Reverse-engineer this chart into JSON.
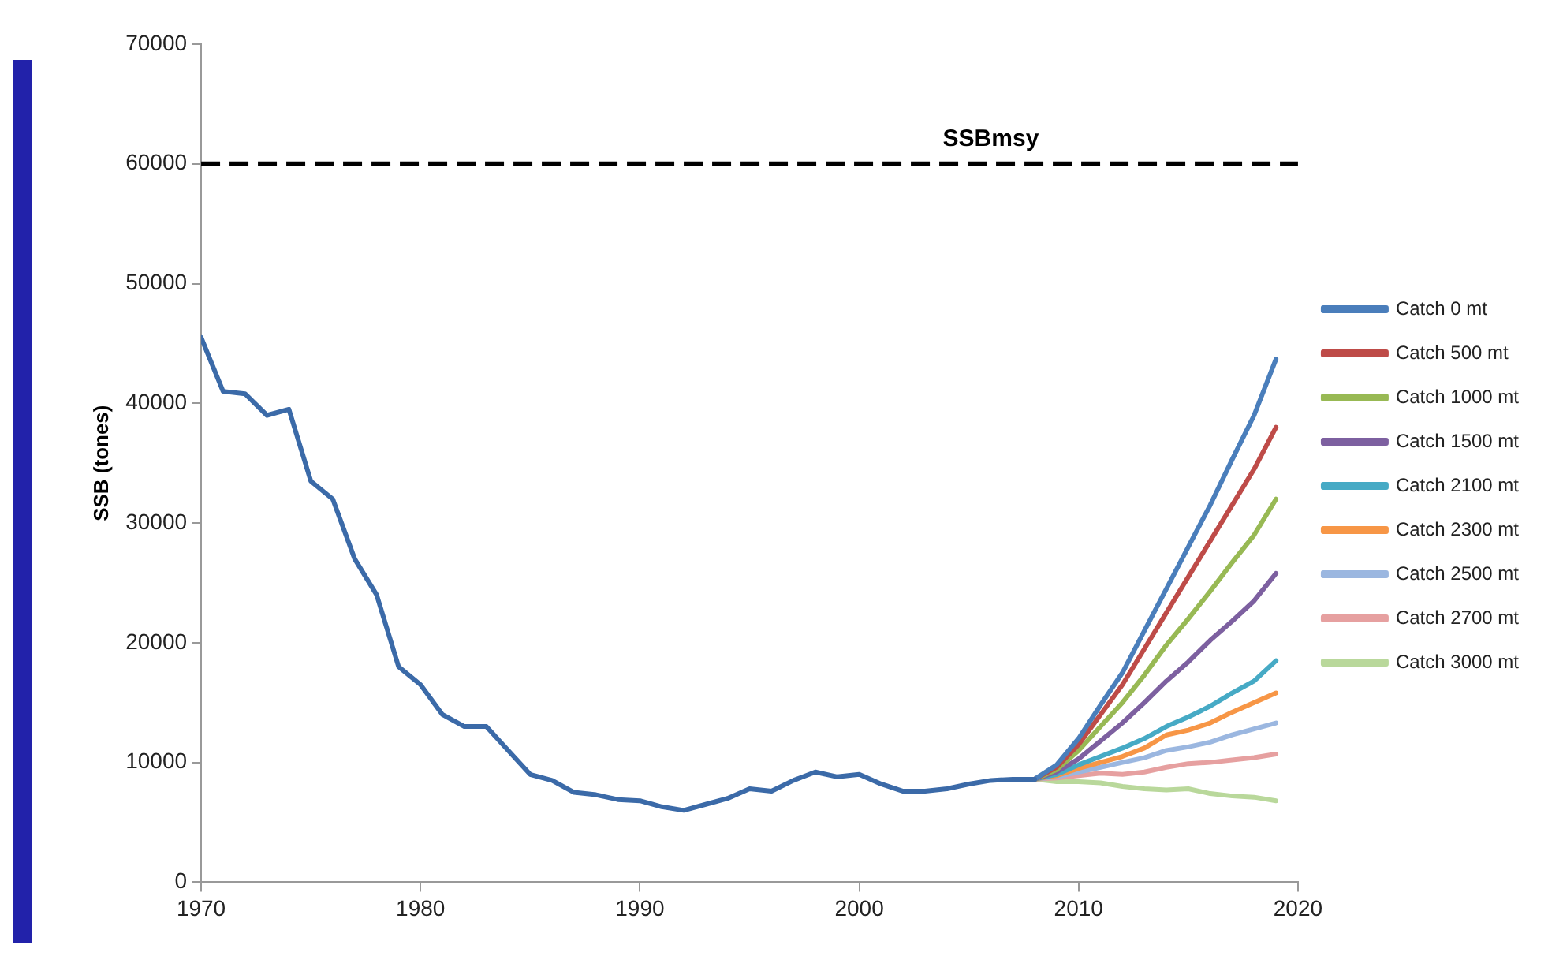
{
  "chart_data": {
    "type": "line",
    "ylabel": "SSB (tones)",
    "xlim": [
      1970,
      2020
    ],
    "xticks": [
      1970,
      1980,
      1990,
      2000,
      2010,
      2020
    ],
    "ylim": [
      0,
      70000
    ],
    "yticks": [
      0,
      10000,
      20000,
      30000,
      40000,
      50000,
      60000,
      70000
    ],
    "grid": false,
    "legend": "right",
    "line_style": "solid",
    "marker": "none",
    "ref_lines": [
      {
        "axis": "y",
        "value": 60000,
        "label": "SSBmsy",
        "color": "#000000",
        "line_style": "dashed"
      }
    ],
    "series": [
      {
        "color": "#3b6aa8",
        "x": [
          1970,
          1971,
          1972,
          1973,
          1974,
          1975,
          1976,
          1977,
          1978,
          1979,
          1980,
          1981,
          1982,
          1983,
          1984,
          1985,
          1986,
          1987,
          1988,
          1989,
          1990,
          1991,
          1992,
          1993,
          1994,
          1995,
          1996,
          1997,
          1998,
          1999,
          2000,
          2001,
          2002,
          2003,
          2004,
          2005,
          2006,
          2007,
          2008
        ],
        "values": [
          45500,
          41000,
          40800,
          39000,
          39500,
          33500,
          32000,
          27000,
          24000,
          18000,
          16500,
          14000,
          13000,
          13000,
          11000,
          9000,
          8500,
          7500,
          7300,
          6900,
          6800,
          6300,
          6000,
          6500,
          7000,
          7800,
          7600,
          8500,
          9200,
          8800,
          9000,
          8200,
          7600,
          7600,
          7800,
          8200,
          8500,
          8600,
          8600
        ]
      },
      {
        "name": "Catch 0 mt",
        "color": "#4a7ebb",
        "x": [
          2008,
          2009,
          2010,
          2011,
          2012,
          2013,
          2014,
          2015,
          2016,
          2017,
          2018,
          2019
        ],
        "values": [
          8600,
          9800,
          12000,
          14800,
          17500,
          21000,
          24500,
          28000,
          31500,
          35300,
          39000,
          43700
        ]
      },
      {
        "name": "Catch 500 mt",
        "color": "#be4b48",
        "x": [
          2008,
          2009,
          2010,
          2011,
          2012,
          2013,
          2014,
          2015,
          2016,
          2017,
          2018,
          2019
        ],
        "values": [
          8600,
          9600,
          11500,
          14000,
          16500,
          19500,
          22500,
          25500,
          28500,
          31500,
          34500,
          38000
        ]
      },
      {
        "name": "Catch 1000 mt",
        "color": "#98b954",
        "x": [
          2008,
          2009,
          2010,
          2011,
          2012,
          2013,
          2014,
          2015,
          2016,
          2017,
          2018,
          2019
        ],
        "values": [
          8600,
          9400,
          11000,
          13000,
          15000,
          17300,
          19800,
          22000,
          24300,
          26700,
          29000,
          32000
        ]
      },
      {
        "name": "Catch 1500 mt",
        "color": "#7d60a0",
        "x": [
          2008,
          2009,
          2010,
          2011,
          2012,
          2013,
          2014,
          2015,
          2016,
          2017,
          2018,
          2019
        ],
        "values": [
          8600,
          9200,
          10300,
          11800,
          13300,
          15000,
          16800,
          18400,
          20200,
          21800,
          23500,
          25800
        ]
      },
      {
        "name": "Catch 2100 mt",
        "color": "#46aac5",
        "x": [
          2008,
          2009,
          2010,
          2011,
          2012,
          2013,
          2014,
          2015,
          2016,
          2017,
          2018,
          2019
        ],
        "values": [
          8600,
          9000,
          9800,
          10500,
          11200,
          12000,
          13000,
          13800,
          14700,
          15800,
          16800,
          18500
        ]
      },
      {
        "name": "Catch 2300 mt",
        "color": "#f79646",
        "x": [
          2008,
          2009,
          2010,
          2011,
          2012,
          2013,
          2014,
          2015,
          2016,
          2017,
          2018,
          2019
        ],
        "values": [
          8600,
          8900,
          9500,
          10000,
          10500,
          11200,
          12300,
          12700,
          13300,
          14200,
          15000,
          15800
        ]
      },
      {
        "name": "Catch 2500 mt",
        "color": "#9bb7e0",
        "x": [
          2008,
          2009,
          2010,
          2011,
          2012,
          2013,
          2014,
          2015,
          2016,
          2017,
          2018,
          2019
        ],
        "values": [
          8600,
          8800,
          9200,
          9600,
          10000,
          10400,
          11000,
          11300,
          11700,
          12300,
          12800,
          13300
        ]
      },
      {
        "name": "Catch 2700 mt",
        "color": "#e6a0a0",
        "x": [
          2008,
          2009,
          2010,
          2011,
          2012,
          2013,
          2014,
          2015,
          2016,
          2017,
          2018,
          2019
        ],
        "values": [
          8600,
          8700,
          8900,
          9100,
          9000,
          9200,
          9600,
          9900,
          10000,
          10200,
          10400,
          10700
        ]
      },
      {
        "name": "Catch 3000 mt",
        "color": "#b9d89b",
        "x": [
          2008,
          2009,
          2010,
          2011,
          2012,
          2013,
          2014,
          2015,
          2016,
          2017,
          2018,
          2019
        ],
        "values": [
          8600,
          8400,
          8400,
          8300,
          8000,
          7800,
          7700,
          7800,
          7400,
          7200,
          7100,
          6800
        ]
      }
    ]
  }
}
